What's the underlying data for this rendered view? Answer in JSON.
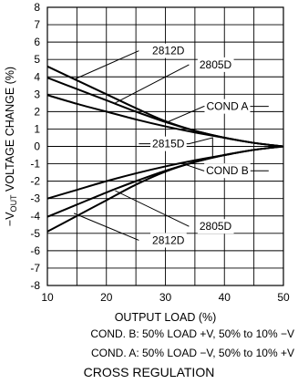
{
  "chart_data": {
    "type": "line",
    "title": "CROSS REGULATION",
    "xlabel": "OUTPUT LOAD (%)",
    "ylabel_prefix": "−V",
    "ylabel_sub": "OUT",
    "ylabel_suffix": " VOLTAGE CHANGE (%)",
    "xlim": [
      10,
      50
    ],
    "ylim": [
      -8,
      8
    ],
    "xticks": [
      10,
      20,
      30,
      40,
      50
    ],
    "yticks": [
      8,
      7,
      6,
      5,
      4,
      3,
      2,
      1,
      0,
      -1,
      -2,
      -3,
      -4,
      -5,
      -6,
      -7,
      -8
    ],
    "ytick_labels": [
      "8",
      "7",
      "6",
      "5",
      "4",
      "3",
      "2",
      "1",
      "0",
      "-1",
      "-2",
      "-3",
      "-4",
      "-5",
      "-6",
      "-7",
      "-8"
    ],
    "xgrid_step": 5,
    "ygrid_step": 1,
    "series": [
      {
        "name": "2812D",
        "x": [
          10,
          15,
          20,
          25,
          30,
          35,
          40,
          45,
          50
        ],
        "y": [
          4.6,
          3.8,
          3.0,
          2.2,
          1.45,
          0.9,
          0.5,
          0.2,
          0
        ]
      },
      {
        "name": "2805D",
        "x": [
          10,
          15,
          20,
          25,
          30,
          35,
          40,
          45,
          50
        ],
        "y": [
          3.95,
          3.3,
          2.65,
          2.0,
          1.4,
          0.9,
          0.5,
          0.2,
          0
        ]
      },
      {
        "name": "2815D",
        "x": [
          10,
          15,
          20,
          25,
          30,
          35,
          40,
          45,
          50
        ],
        "y": [
          2.95,
          2.45,
          2.0,
          1.55,
          1.15,
          0.8,
          0.5,
          0.2,
          0
        ]
      },
      {
        "name": "2815D",
        "x": [
          10,
          15,
          20,
          25,
          30,
          35,
          40,
          45,
          50
        ],
        "y": [
          -3.0,
          -2.5,
          -2.0,
          -1.55,
          -1.15,
          -0.8,
          -0.5,
          -0.2,
          0
        ]
      },
      {
        "name": "2805D",
        "x": [
          10,
          15,
          20,
          25,
          30,
          35,
          40,
          45,
          50
        ],
        "y": [
          -4.05,
          -3.35,
          -2.65,
          -2.0,
          -1.4,
          -0.9,
          -0.5,
          -0.2,
          0
        ]
      },
      {
        "name": "2812D",
        "x": [
          10,
          15,
          20,
          25,
          30,
          35,
          40,
          45,
          50
        ],
        "y": [
          -4.9,
          -4.0,
          -3.1,
          -2.2,
          -1.45,
          -0.9,
          -0.5,
          -0.2,
          0
        ]
      }
    ],
    "annotations": [
      {
        "text": "2812D",
        "x": 30.5,
        "y": 5.5,
        "points": [
          [
            14.5,
            3.85
          ],
          [
            25.5,
            5.5
          ]
        ]
      },
      {
        "text": "2805D",
        "x": 38.5,
        "y": 4.7,
        "points": [
          [
            21.5,
            2.5
          ],
          [
            34.0,
            4.7
          ]
        ]
      },
      {
        "text": "COND A",
        "x": 40.5,
        "y": 2.3,
        "points": [
          [
            30.0,
            1.35
          ],
          [
            36.5,
            2.3
          ],
          [
            47.5,
            2.3
          ]
        ]
      },
      {
        "text": "2815D",
        "x": 30.5,
        "y": 0.15,
        "points": [
          [
            25.5,
            0.15
          ],
          [
            34.0,
            0.15
          ],
          [
            38.0,
            0.5
          ],
          [
            38.0,
            -0.6
          ]
        ]
      },
      {
        "text": "COND B",
        "x": 40.5,
        "y": -1.4,
        "points": [
          [
            33.0,
            -1.0
          ],
          [
            36.5,
            -1.4
          ],
          [
            47.5,
            -1.4
          ]
        ]
      },
      {
        "text": "2805D",
        "x": 38.5,
        "y": -4.6,
        "points": [
          [
            21.5,
            -2.55
          ],
          [
            34.0,
            -4.6
          ]
        ]
      },
      {
        "text": "2812D",
        "x": 30.5,
        "y": -5.4,
        "points": [
          [
            14.5,
            -3.85
          ],
          [
            25.5,
            -5.4
          ]
        ]
      }
    ],
    "notes": [
      "COND. B: 50% LOAD +V, 50% to 10% −V",
      "COND. A: 50% LOAD −V, 50% to 10% +V"
    ]
  }
}
